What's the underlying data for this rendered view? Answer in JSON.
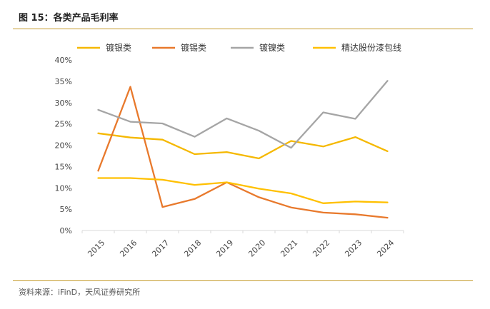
{
  "figure": {
    "title": "图 15：各类产品毛利率",
    "source": "资料来源：iFinD，天风证券研究所"
  },
  "chart_data": {
    "type": "line",
    "x": [
      "2015",
      "2016",
      "2017",
      "2018",
      "2019",
      "2020",
      "2021",
      "2022",
      "2023",
      "2024"
    ],
    "ylim": [
      0,
      0.4
    ],
    "yticks": [
      "0%",
      "5%",
      "10%",
      "15%",
      "20%",
      "25%",
      "30%",
      "35%",
      "40%"
    ],
    "grid": false,
    "legend_position": "top",
    "series": [
      {
        "name": "镀银类",
        "color": "#F5B800",
        "values": [
          0.228,
          0.218,
          0.213,
          0.179,
          0.184,
          0.169,
          0.21,
          0.197,
          0.219,
          0.186
        ]
      },
      {
        "name": "镀锡类",
        "color": "#E8792C",
        "values": [
          0.14,
          0.337,
          0.055,
          0.074,
          0.113,
          0.078,
          0.054,
          0.042,
          0.038,
          0.03
        ]
      },
      {
        "name": "镀镍类",
        "color": "#A5A5A5",
        "values": [
          0.283,
          0.255,
          0.251,
          0.22,
          0.263,
          0.234,
          0.194,
          0.277,
          0.262,
          0.351
        ]
      },
      {
        "name": "精达股份漆包线",
        "color": "#FFC000",
        "values": [
          0.123,
          0.123,
          0.119,
          0.107,
          0.113,
          0.098,
          0.087,
          0.064,
          0.068,
          0.066
        ]
      }
    ]
  }
}
